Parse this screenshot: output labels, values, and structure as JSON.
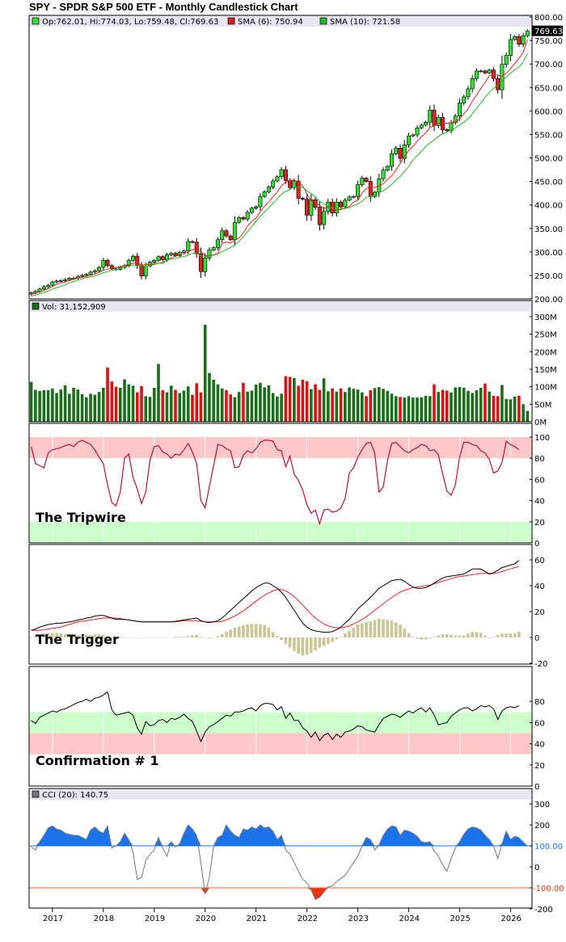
{
  "chart_title": "SPY - SPDR S&P 500 ETF - Monthly Candlestick Chart",
  "price_panel": {
    "ohlc_label": "Op:762.01, Hi:774.03, Lo:759.48, Cl:769.63",
    "sma6_label": "SMA (6): 750.94",
    "sma10_label": "SMA (10): 721.58",
    "last_price": "769.63",
    "colors": {
      "up": "#33dd33",
      "down": "#dd2222",
      "sma6": "#ee2222",
      "sma10": "#22bb22"
    }
  },
  "volume_panel": {
    "label": "Vol: 31,152,909"
  },
  "tripwire_panel": {
    "label": "The Tripwire"
  },
  "trigger_panel": {
    "label": "The Trigger"
  },
  "confirm_panel": {
    "label": "Confirmation # 1"
  },
  "cci_panel": {
    "label": "CCI (20): 140.75",
    "upper_line": "100.00",
    "lower_line": "-100.00"
  },
  "x_axis": {
    "labels": [
      "2017",
      "2018",
      "2019",
      "2020",
      "2021",
      "2022",
      "2023",
      "2024",
      "2025",
      "2026"
    ]
  },
  "chart_data": {
    "type": "line",
    "price": {
      "y_ticks": [
        "800.00",
        "750.00",
        "700.00",
        "650.00",
        "600.00",
        "550.00",
        "500.00",
        "450.00",
        "400.00",
        "350.00",
        "300.00",
        "250.00",
        "200.00"
      ],
      "ylim": [
        200,
        800
      ],
      "closes": [
        213,
        216,
        221,
        226,
        229,
        236,
        238,
        239,
        241,
        244,
        244,
        248,
        250,
        252,
        257,
        260,
        267,
        282,
        271,
        264,
        263,
        267,
        271,
        282,
        291,
        271,
        249,
        270,
        278,
        282,
        290,
        283,
        294,
        297,
        292,
        299,
        302,
        322,
        321,
        296,
        258,
        287,
        304,
        309,
        326,
        345,
        334,
        326,
        363,
        373,
        370,
        384,
        393,
        396,
        418,
        428,
        438,
        451,
        460,
        475,
        452,
        437,
        451,
        414,
        412,
        378,
        411,
        395,
        358,
        386,
        406,
        383,
        406,
        396,
        410,
        417,
        418,
        443,
        457,
        450,
        418,
        427,
        456,
        474,
        482,
        509,
        521,
        499,
        528,
        547,
        549,
        564,
        570,
        576,
        602,
        569,
        586,
        560,
        558,
        575,
        589,
        617,
        630,
        647,
        669,
        685,
        685,
        681,
        687,
        669,
        645,
        699,
        718,
        752,
        758,
        742,
        760,
        770
      ],
      "sma6": [
        210,
        212,
        215,
        218,
        222,
        227,
        231,
        234,
        236,
        239,
        242,
        244,
        246,
        248,
        250,
        253,
        256,
        261,
        263,
        265,
        267,
        269,
        271,
        273,
        276,
        276,
        272,
        273,
        273,
        275,
        276,
        276,
        282,
        287,
        291,
        294,
        296,
        300,
        305,
        306,
        300,
        292,
        292,
        294,
        297,
        318,
        321,
        319,
        325,
        330,
        340,
        355,
        365,
        372,
        386,
        397,
        406,
        417,
        427,
        441,
        449,
        452,
        453,
        447,
        441,
        423,
        408,
        404,
        399,
        392,
        396,
        390,
        389,
        390,
        393,
        397,
        406,
        410,
        425,
        435,
        438,
        437,
        441,
        445,
        454,
        462,
        475,
        488,
        503,
        516,
        524,
        536,
        545,
        553,
        565,
        568,
        574,
        575,
        574,
        575,
        578,
        582,
        594,
        604,
        621,
        634,
        648,
        661,
        675,
        677,
        676,
        674,
        680,
        690,
        701,
        712,
        725,
        751
      ],
      "sma10": [
        206,
        208,
        211,
        214,
        217,
        221,
        224,
        227,
        230,
        234,
        237,
        240,
        243,
        245,
        247,
        249,
        252,
        256,
        258,
        261,
        263,
        265,
        268,
        270,
        272,
        272,
        270,
        270,
        271,
        273,
        276,
        278,
        282,
        285,
        286,
        289,
        290,
        293,
        297,
        297,
        292,
        290,
        291,
        293,
        296,
        301,
        305,
        309,
        315,
        323,
        332,
        343,
        354,
        365,
        376,
        385,
        394,
        403,
        413,
        423,
        429,
        433,
        438,
        439,
        437,
        430,
        424,
        417,
        408,
        402,
        397,
        393,
        393,
        392,
        393,
        394,
        399,
        402,
        408,
        416,
        419,
        421,
        426,
        430,
        436,
        444,
        453,
        461,
        471,
        482,
        496,
        505,
        514,
        524,
        532,
        538,
        546,
        551,
        555,
        559,
        564,
        570,
        576,
        583,
        594,
        605,
        617,
        629,
        640,
        648,
        655,
        664,
        672,
        680,
        688,
        693,
        705,
        722
      ]
    },
    "volume": {
      "y_ticks": [
        "300M",
        "250M",
        "200M",
        "150M",
        "100M",
        "50M",
        "0M"
      ],
      "ylim": [
        0,
        320
      ],
      "values": [
        114,
        91,
        88,
        90,
        90,
        95,
        82,
        92,
        104,
        80,
        97,
        92,
        79,
        70,
        80,
        77,
        85,
        97,
        155,
        115,
        100,
        97,
        121,
        107,
        103,
        84,
        102,
        73,
        71,
        97,
        165,
        90,
        84,
        103,
        91,
        82,
        89,
        101,
        77,
        110,
        84,
        277,
        139,
        120,
        107,
        95,
        90,
        78,
        70,
        85,
        111,
        86,
        89,
        106,
        111,
        98,
        104,
        82,
        72,
        80,
        130,
        128,
        125,
        103,
        120,
        116,
        93,
        107,
        91,
        124,
        87,
        95,
        86,
        95,
        85,
        98,
        94,
        92,
        84,
        73,
        90,
        96,
        99,
        94,
        88,
        80,
        73,
        71,
        69,
        73,
        69,
        69,
        70,
        74,
        73,
        107,
        85,
        91,
        89,
        84,
        98,
        99,
        97,
        88,
        82,
        90,
        97,
        109,
        86,
        74,
        73,
        105,
        65,
        64,
        72,
        74,
        50,
        31
      ]
    },
    "tripwire": {
      "y_ticks": [
        "100",
        "80",
        "60",
        "40",
        "20",
        "0"
      ],
      "ylim": [
        0,
        100
      ],
      "bands": [
        {
          "from": 80,
          "to": 100,
          "color": "#ffc8c8"
        },
        {
          "from": 0,
          "to": 20,
          "color": "#ccffcc"
        }
      ],
      "values": [
        91,
        75,
        73,
        71,
        85,
        88,
        89,
        90,
        92,
        93,
        91,
        95,
        97,
        95,
        93,
        88,
        81,
        75,
        55,
        38,
        35,
        48,
        80,
        84,
        62,
        51,
        37,
        48,
        78,
        91,
        92,
        86,
        84,
        80,
        84,
        83,
        88,
        94,
        86,
        75,
        40,
        33,
        53,
        73,
        93,
        92,
        89,
        87,
        71,
        72,
        83,
        87,
        85,
        89,
        95,
        97,
        97,
        96,
        88,
        87,
        72,
        82,
        65,
        59,
        50,
        36,
        28,
        31,
        18,
        31,
        32,
        29,
        30,
        33,
        42,
        66,
        71,
        81,
        88,
        94,
        95,
        85,
        48,
        53,
        78,
        94,
        95,
        91,
        87,
        85,
        88,
        90,
        93,
        92,
        87,
        88,
        83,
        65,
        49,
        45,
        55,
        81,
        95,
        95,
        93,
        92,
        87,
        85,
        79,
        66,
        68,
        76,
        96,
        93,
        91,
        88
      ]
    },
    "trigger": {
      "y_ticks": [
        "60",
        "40",
        "20",
        "0",
        "-20"
      ],
      "ylim": [
        -25,
        65
      ],
      "fast": [
        5.5,
        6.5,
        8,
        9,
        10,
        10.5,
        11,
        11,
        11.5,
        12,
        12.5,
        13.5,
        14,
        15,
        15.5,
        16.5,
        17,
        17,
        16,
        15,
        14,
        14,
        14,
        13.5,
        13,
        12.5,
        12,
        12,
        12,
        12,
        12,
        12,
        12,
        12,
        12.5,
        13,
        13.5,
        14,
        14.5,
        15,
        13,
        12,
        11.5,
        12,
        13,
        15,
        18,
        21,
        24,
        27,
        30,
        33,
        36,
        38.5,
        40.5,
        42,
        42,
        40,
        38,
        35,
        31,
        26,
        21,
        16,
        11,
        8,
        6,
        5,
        4.5,
        4,
        4,
        4.5,
        6,
        8,
        11,
        14,
        18,
        22,
        25,
        28,
        31,
        34.5,
        38,
        40,
        42,
        44,
        44.5,
        45,
        43.5,
        41,
        39,
        38,
        38,
        38.5,
        40,
        42,
        44,
        46,
        47,
        47.5,
        48,
        48.5,
        49,
        51,
        53,
        53,
        53,
        51,
        49,
        50,
        52,
        54,
        55,
        56,
        57,
        59.5
      ],
      "slow": [
        5.5,
        5.5,
        5.5,
        6,
        6.5,
        7,
        7.5,
        8,
        9,
        10,
        11,
        12,
        12.5,
        13,
        13.5,
        14,
        14.5,
        15,
        15,
        15,
        15,
        14.5,
        14,
        13.5,
        13,
        12.5,
        12,
        12,
        12,
        12,
        12,
        12,
        12,
        12,
        12,
        12.5,
        13,
        13,
        13,
        13,
        12.5,
        12,
        12,
        12,
        12,
        12.5,
        13.5,
        15,
        16.5,
        18.5,
        20.5,
        23,
        25.5,
        28,
        30.5,
        32.5,
        34.5,
        36,
        37,
        37,
        36,
        34,
        31.5,
        28.5,
        25,
        21.5,
        18,
        15,
        12.5,
        10.5,
        9,
        8,
        7.5,
        7.5,
        8,
        9,
        10.5,
        12,
        14,
        16,
        18.5,
        21,
        23.5,
        26,
        28.5,
        31,
        33,
        35,
        36.5,
        37.5,
        38.5,
        39,
        39.5,
        40,
        40.5,
        41.5,
        42.5,
        43.5,
        44.5,
        45.5,
        46.5,
        47,
        47.5,
        48,
        48.5,
        49,
        49.5,
        49.5,
        49.5,
        49.5,
        50,
        51,
        52,
        53,
        54,
        55
      ],
      "histogram": [
        0,
        1,
        2.5,
        3,
        3.5,
        3.5,
        3.5,
        3,
        2.5,
        2,
        1.5,
        1.5,
        1.5,
        2,
        2,
        2.5,
        2.5,
        2,
        1,
        0,
        -1,
        -0.5,
        0,
        0,
        0,
        0,
        0,
        0,
        0,
        0,
        0,
        0,
        0,
        0,
        0.5,
        0.5,
        0.5,
        1,
        1.5,
        2,
        0.5,
        0,
        -0.5,
        0,
        1,
        2.5,
        4.5,
        6,
        7.5,
        8.5,
        9.5,
        10,
        10.5,
        10.5,
        10,
        9.5,
        7.5,
        4,
        1,
        -2,
        -5,
        -8,
        -10.5,
        -12.5,
        -14,
        -13.5,
        -12,
        -10,
        -8,
        -6.5,
        -5,
        -3.5,
        -1.5,
        0.5,
        3,
        5,
        7.5,
        10,
        11,
        12,
        12.5,
        13.5,
        14.5,
        14,
        13.5,
        13,
        11.5,
        10,
        7,
        3.5,
        0.5,
        -1,
        -1.5,
        -1.5,
        -0.5,
        0.5,
        1.5,
        2.5,
        2.5,
        2,
        1.5,
        1.5,
        1.5,
        3,
        4.5,
        4,
        3.5,
        1.5,
        -0.5,
        0.5,
        2,
        3,
        3,
        3,
        3,
        4.5
      ],
      "colors": {
        "fast": "#000000",
        "slow": "#ee2222",
        "histogram": "#c8c896"
      }
    },
    "confirmation": {
      "y_ticks": [
        "80",
        "60",
        "40",
        "20",
        "0"
      ],
      "ylim": [
        0,
        100
      ],
      "bands": [
        {
          "from": 50,
          "to": 70,
          "color": "#ccffcc"
        },
        {
          "from": 30,
          "to": 50,
          "color": "#ffc8c8"
        }
      ],
      "values": [
        62,
        59,
        65,
        67,
        69,
        71,
        70,
        72,
        73,
        75,
        77,
        79,
        80,
        82,
        80,
        83,
        84,
        86,
        89,
        72,
        67,
        68,
        69,
        70,
        67,
        55,
        49,
        61,
        57,
        58,
        62,
        63,
        60,
        64,
        63,
        65,
        68,
        64,
        61,
        52,
        42,
        51,
        56,
        58,
        61,
        64,
        67,
        66,
        70,
        70,
        71,
        73,
        74,
        71,
        76,
        78,
        78,
        77,
        72,
        75,
        64,
        69,
        62,
        62,
        55,
        52,
        46,
        51,
        43,
        48,
        50,
        44,
        49,
        46,
        51,
        52,
        54,
        57,
        56,
        53,
        52,
        51,
        58,
        64,
        66,
        68,
        67,
        65,
        68,
        71,
        69,
        72,
        74,
        70,
        74,
        67,
        58,
        59,
        60,
        66,
        69,
        72,
        74,
        74,
        71,
        73,
        76,
        75,
        76,
        73,
        63,
        71,
        74,
        75,
        74,
        76
      ]
    },
    "cci": {
      "y_ticks": [
        "300",
        "200",
        "100",
        "0",
        "-100",
        "-200"
      ],
      "ylim": [
        -230,
        330
      ],
      "upper": 100,
      "lower": -100,
      "values": [
        95,
        80,
        120,
        150,
        185,
        195,
        180,
        175,
        160,
        155,
        150,
        150,
        140,
        130,
        175,
        190,
        170,
        160,
        195,
        90,
        100,
        120,
        160,
        130,
        70,
        -60,
        -50,
        30,
        60,
        80,
        140,
        90,
        50,
        120,
        95,
        110,
        160,
        200,
        180,
        150,
        20,
        -130,
        -50,
        100,
        140,
        150,
        200,
        170,
        150,
        140,
        180,
        175,
        190,
        180,
        200,
        185,
        190,
        170,
        130,
        150,
        80,
        60,
        20,
        -20,
        -60,
        -75,
        -110,
        -155,
        -145,
        -120,
        -95,
        -90,
        -70,
        -55,
        -40,
        -10,
        20,
        50,
        100,
        140,
        130,
        80,
        105,
        150,
        180,
        195,
        190,
        150,
        175,
        170,
        160,
        145,
        120,
        115,
        120,
        75,
        50,
        10,
        -20,
        40,
        90,
        120,
        155,
        180,
        190,
        185,
        175,
        150,
        130,
        100,
        40,
        110,
        170,
        130,
        145,
        140
      ]
    }
  }
}
